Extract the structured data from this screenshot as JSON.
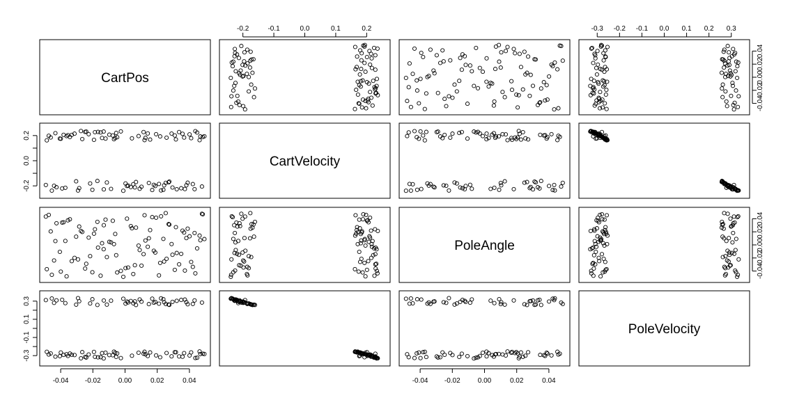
{
  "chart_data": {
    "type": "scatter",
    "subtype": "scatterplot-matrix",
    "variables": [
      {
        "name": "CartPos",
        "range": [
          -0.05,
          0.05
        ],
        "ticks": [
          -0.04,
          -0.02,
          0.0,
          0.02,
          0.04
        ],
        "tick_labels": [
          "-0.04",
          "-0.02",
          "0.00",
          "0.02",
          "0.04"
        ]
      },
      {
        "name": "CartVelocity",
        "range": [
          -0.26,
          0.26
        ],
        "ticks": [
          -0.2,
          -0.1,
          0.0,
          0.1,
          0.2
        ],
        "tick_labels": [
          "-0.2",
          "-0.1",
          "0.0",
          "0.1",
          "0.2"
        ],
        "left_tick_labels": [
          "-0.2",
          "0.0",
          "0.2"
        ]
      },
      {
        "name": "PoleAngle",
        "range": [
          -0.05,
          0.05
        ],
        "ticks": [
          -0.04,
          -0.02,
          0.0,
          0.02,
          0.04
        ],
        "tick_labels": [
          "-0.04",
          "-0.02",
          "0.00",
          "0.02",
          "0.04"
        ]
      },
      {
        "name": "PoleVelocity",
        "range": [
          -0.36,
          0.36
        ],
        "ticks": [
          -0.3,
          -0.2,
          -0.1,
          0.0,
          0.1,
          0.2,
          0.3
        ],
        "tick_labels": [
          "-0.3",
          "-0.2",
          "-0.1",
          "0.0",
          "0.1",
          "0.2",
          "0.3"
        ],
        "left_tick_labels": [
          "-0.3",
          "-0.1",
          "0.1",
          "0.3"
        ]
      }
    ],
    "n_points": 100,
    "observations": {
      "CartPos": [
        -0.0371,
        0.0309,
        0.0043,
        -0.0492,
        0.0115,
        0.0271,
        0.0218,
        -0.0226,
        -0.0455,
        0.0367,
        0.0012,
        -0.0133,
        0.0421,
        -0.0087,
        0.0156,
        -0.0314,
        0.0478,
        -0.0049,
        0.0238,
        -0.0405,
        -0.0172,
        0.0336,
        0.0084,
        -0.0285,
        0.0463,
        -0.0011,
        0.0193,
        -0.0441,
        0.0127,
        -0.0248,
        0.0389,
        -0.0069,
        0.0295,
        -0.0355,
        0.0051,
        -0.0193,
        0.0448,
        -0.0132,
        0.0258,
        -0.0474,
        0.0102,
        -0.0304,
        0.0357,
        -0.0026,
        0.0179,
        -0.0391,
        0.0411,
        -0.0098,
        0.0224,
        -0.0217,
        0.0493,
        -0.0152,
        0.0068,
        -0.0343,
        0.0321,
        0.0019,
        -0.0266,
        0.0141,
        -0.0426,
        0.0437,
        -0.0061,
        0.0253,
        -0.0331,
        0.0091,
        -0.0187,
        0.0381,
        -0.0486,
        0.0169,
        -0.0113,
        0.0289,
        -0.0399,
        0.0036,
        0.0468,
        -0.0241,
        0.0211,
        -0.0076,
        0.0349,
        -0.0462,
        0.0121,
        -0.0292,
        0.0401,
        0.0003,
        -0.0168,
        0.0275,
        -0.0363,
        0.0432,
        -0.0121,
        0.0188,
        -0.0433,
        0.0061,
        0.0316,
        -0.0203,
        0.0483,
        -0.0055,
        0.0148,
        -0.0382,
        0.0243,
        -0.0143,
        0.0372,
        -0.0274
      ],
      "CartVelocity": [
        -0.215,
        0.201,
        0.178,
        -0.193,
        0.228,
        -0.172,
        0.193,
        0.211,
        -0.238,
        0.184,
        -0.201,
        0.232,
        -0.186,
        -0.224,
        0.168,
        0.215,
        -0.205,
        0.187,
        -0.231,
        0.176,
        -0.161,
        0.228,
        0.196,
        -0.218,
        0.163,
        -0.239,
        0.211,
        -0.199,
        0.182,
        0.229,
        -0.175,
        0.171,
        -0.213,
        0.203,
        -0.187,
        0.166,
        0.224,
        -0.228,
        0.183,
        0.198,
        -0.207,
        -0.164,
        0.214,
        0.233,
        -0.192,
        -0.221,
        0.179,
        0.207,
        -0.236,
        -0.181,
        0.194,
        0.225,
        -0.169,
        0.188,
        -0.227,
        -0.198,
        0.172,
        0.217,
        -0.211,
        0.235,
        0.181,
        -0.176,
        0.205,
        -0.223,
        0.227,
        -0.195,
        0.162,
        -0.233,
        -0.173,
        0.216,
        0.174,
        -0.209,
        0.193,
        0.231,
        -0.185,
        0.201,
        -0.219,
        0.185,
        0.164,
        -0.237,
        0.209,
        -0.181,
        0.229,
        -0.166,
        0.196,
        -0.226,
        0.176,
        -0.201,
        0.219,
        -0.212,
        0.169,
        -0.231,
        0.189,
        0.221,
        -0.177,
        0.206,
        -0.196,
        0.181,
        -0.225,
        0.236
      ],
      "PoleAngle": [
        0.0061,
        -0.0382,
        0.0254,
        0.0433,
        -0.0141,
        0.0318,
        -0.0275,
        0.0112,
        -0.0457,
        0.0189,
        0.0401,
        -0.0066,
        -0.0336,
        0.0038,
        0.0227,
        -0.0199,
        0.0476,
        -0.0421,
        0.0091,
        -0.0106,
        0.0352,
        -0.0297,
        -0.0011,
        0.0281,
        0.0143,
        -0.0488,
        0.0416,
        -0.0238,
        0.0067,
        -0.0362,
        0.0248,
        0.0012,
        -0.0151,
        0.0376,
        -0.0446,
        0.0171,
        -0.0053,
        0.0301,
        -0.0213,
        0.0459,
        -0.0317,
        0.0126,
        0.0218,
        -0.0398,
        -0.0089,
        0.0342,
        -0.0261,
        0.0047,
        0.0437,
        -0.0172,
        0.0089,
        -0.0471,
        0.0264,
        0.0391,
        -0.0123,
        -0.0346,
        0.0198,
        -0.0029,
        0.0331,
        -0.0435,
        0.0167,
        0.0486,
        -0.0248,
        -0.0079,
        0.0239,
        0.0104,
        -0.0371,
        0.0424,
        -0.0186,
        0.0013,
        -0.0408,
        0.0287,
        0.0071,
        -0.0289,
        -0.0466,
        0.0369,
        -0.0137,
        0.0206,
        0.0453,
        -0.0221,
        0.0132,
        -0.0355,
        -0.0041,
        0.0311,
        -0.0481,
        0.0182,
        0.0386,
        -0.0117,
        0.0058,
        -0.0311,
        0.0271,
        -0.0418,
        0.0468,
        -0.0157,
        0.0101,
        0.0346,
        -0.0254,
        0.0026,
        -0.0393,
        0.0213
      ],
      "PoleVelocity": [
        0.278,
        -0.262,
        -0.301,
        0.312,
        -0.279,
        0.263,
        -0.318,
        -0.287,
        0.329,
        -0.272,
        0.296,
        -0.331,
        0.269,
        0.305,
        -0.265,
        -0.293,
        0.284,
        -0.275,
        0.322,
        -0.306,
        0.258,
        -0.309,
        -0.268,
        0.299,
        -0.254,
        0.326,
        -0.297,
        0.281,
        -0.286,
        -0.315,
        0.266,
        -0.256,
        0.292,
        -0.303,
        0.276,
        -0.259,
        -0.323,
        0.307,
        -0.271,
        -0.288,
        0.294,
        0.261,
        -0.312,
        -0.327,
        0.283,
        0.315,
        -0.264,
        -0.294,
        0.331,
        0.274,
        -0.282,
        -0.317,
        0.257,
        -0.277,
        0.303,
        0.286,
        -0.261,
        -0.304,
        0.309,
        -0.326,
        -0.269,
        0.268,
        -0.291,
        0.319,
        -0.313,
        0.289,
        -0.258,
        0.327,
        0.262,
        -0.308,
        -0.266,
        0.301,
        -0.283,
        -0.321,
        0.272,
        -0.296,
        0.313,
        -0.276,
        -0.257,
        0.333,
        -0.299,
        0.273,
        -0.319,
        0.259,
        -0.285,
        0.308,
        -0.267,
        0.291,
        -0.311,
        0.297,
        -0.263,
        0.321,
        -0.279,
        -0.314,
        0.267,
        -0.292,
        0.288,
        -0.273,
        0.317,
        -0.329
      ]
    },
    "axis_placement": {
      "top": [
        1,
        3
      ],
      "right": [
        0,
        2
      ],
      "bottom": [
        0,
        2
      ],
      "left": [
        1,
        3
      ]
    },
    "grid": false,
    "legend": "none",
    "point_style": "open-circle"
  },
  "colors": {
    "background": "#ffffff",
    "stroke": "#000000"
  }
}
